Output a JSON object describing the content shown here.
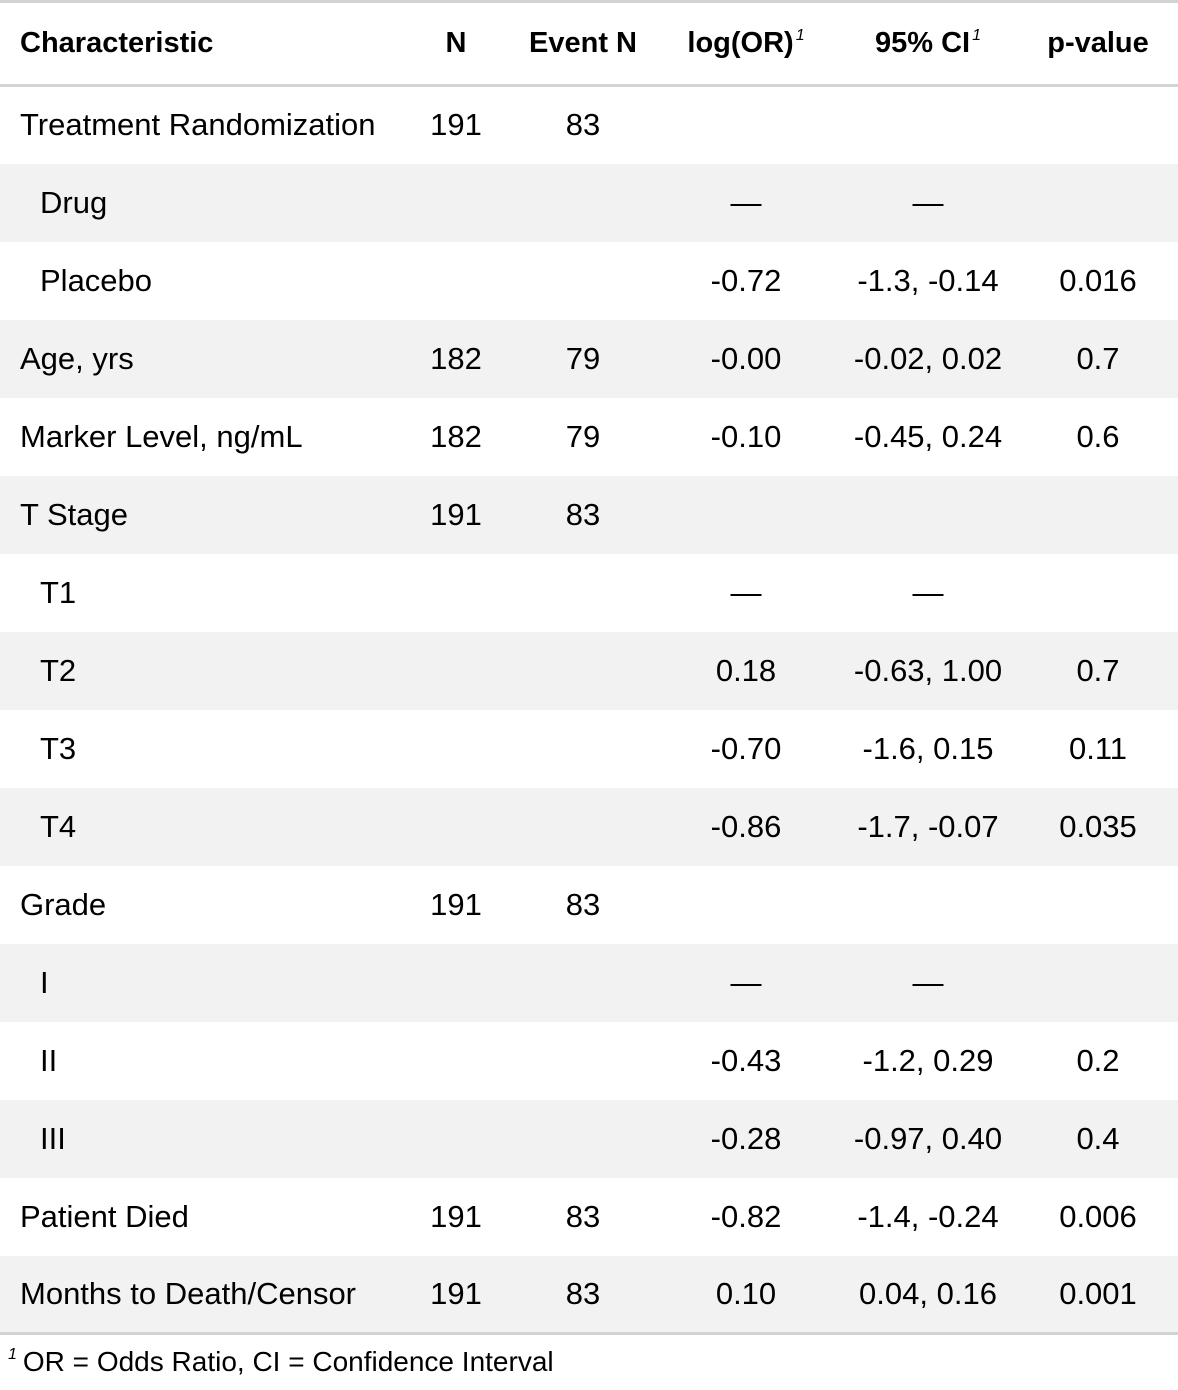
{
  "table": {
    "headers": {
      "characteristic": "Characteristic",
      "n": "N",
      "event_n": "Event N",
      "log_or": "log(OR)",
      "log_or_footnote": "1",
      "ci": "95% CI",
      "ci_footnote": "1",
      "p_value": "p-value"
    },
    "rows": [
      {
        "label": "Treatment Randomization",
        "n": "191",
        "event_n": "83",
        "log_or": "",
        "ci": "",
        "p": ""
      },
      {
        "label": "Drug",
        "n": "",
        "event_n": "",
        "log_or": "—",
        "ci": "—",
        "p": ""
      },
      {
        "label": "Placebo",
        "n": "",
        "event_n": "",
        "log_or": "-0.72",
        "ci": "-1.3, -0.14",
        "p": "0.016"
      },
      {
        "label": "Age, yrs",
        "n": "182",
        "event_n": "79",
        "log_or": "-0.00",
        "ci": "-0.02, 0.02",
        "p": "0.7"
      },
      {
        "label": "Marker Level, ng/mL",
        "n": "182",
        "event_n": "79",
        "log_or": "-0.10",
        "ci": "-0.45, 0.24",
        "p": "0.6"
      },
      {
        "label": "T Stage",
        "n": "191",
        "event_n": "83",
        "log_or": "",
        "ci": "",
        "p": ""
      },
      {
        "label": "T1",
        "n": "",
        "event_n": "",
        "log_or": "—",
        "ci": "—",
        "p": ""
      },
      {
        "label": "T2",
        "n": "",
        "event_n": "",
        "log_or": "0.18",
        "ci": "-0.63, 1.00",
        "p": "0.7"
      },
      {
        "label": "T3",
        "n": "",
        "event_n": "",
        "log_or": "-0.70",
        "ci": "-1.6, 0.15",
        "p": "0.11"
      },
      {
        "label": "T4",
        "n": "",
        "event_n": "",
        "log_or": "-0.86",
        "ci": "-1.7, -0.07",
        "p": "0.035"
      },
      {
        "label": "Grade",
        "n": "191",
        "event_n": "83",
        "log_or": "",
        "ci": "",
        "p": ""
      },
      {
        "label": "I",
        "n": "",
        "event_n": "",
        "log_or": "—",
        "ci": "—",
        "p": ""
      },
      {
        "label": "II",
        "n": "",
        "event_n": "",
        "log_or": "-0.43",
        "ci": "-1.2, 0.29",
        "p": "0.2"
      },
      {
        "label": "III",
        "n": "",
        "event_n": "",
        "log_or": "-0.28",
        "ci": "-0.97, 0.40",
        "p": "0.4"
      },
      {
        "label": "Patient Died",
        "n": "191",
        "event_n": "83",
        "log_or": "-0.82",
        "ci": "-1.4, -0.24",
        "p": "0.006"
      },
      {
        "label": "Months to Death/Censor",
        "n": "191",
        "event_n": "83",
        "log_or": "0.10",
        "ci": "0.04, 0.16",
        "p": "0.001"
      }
    ]
  },
  "footnote": {
    "marker": "1",
    "text": "OR = Odds Ratio, CI = Confidence Interval"
  },
  "colors": {
    "rule": "#d3d3d3",
    "stripe": "#f2f2f2"
  }
}
